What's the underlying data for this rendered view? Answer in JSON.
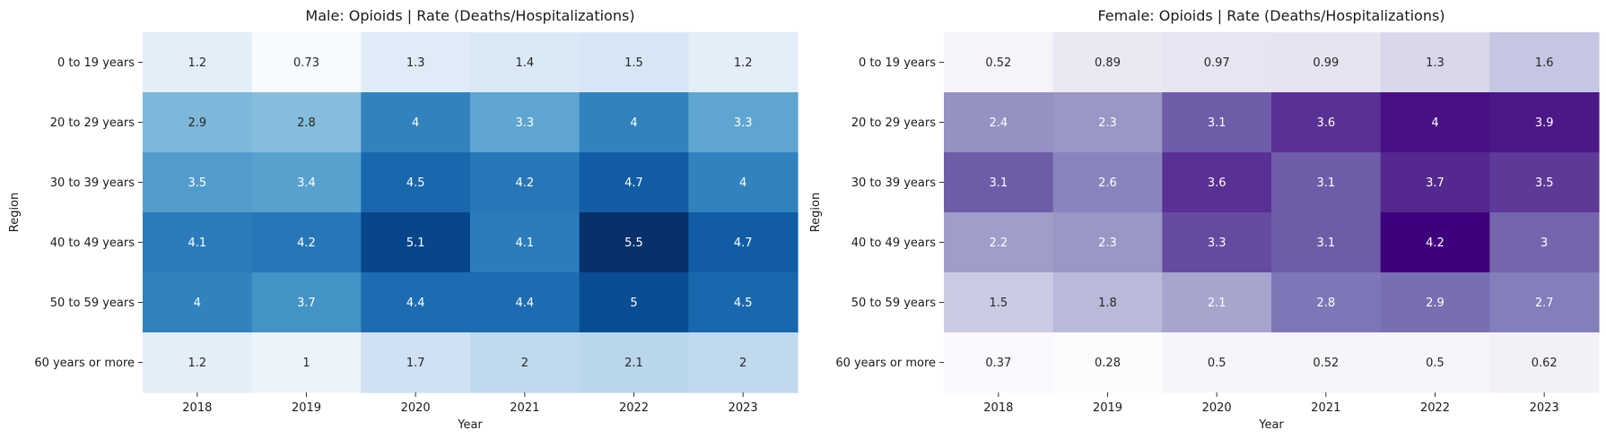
{
  "chart_data": [
    {
      "type": "heatmap",
      "title": "Male: Opioids | Rate (Deaths/Hospitalizations)",
      "xlabel": "Year",
      "ylabel": "Region",
      "x": [
        "2018",
        "2019",
        "2020",
        "2021",
        "2022",
        "2023"
      ],
      "y": [
        "0 to 19 years",
        "20 to 29 years",
        "30 to 39 years",
        "40 to 49 years",
        "50 to 59 years",
        "60 years or more"
      ],
      "values": [
        [
          1.2,
          0.73,
          1.3,
          1.4,
          1.5,
          1.2
        ],
        [
          2.9,
          2.8,
          4,
          3.3,
          4,
          3.3
        ],
        [
          3.5,
          3.4,
          4.5,
          4.2,
          4.7,
          4
        ],
        [
          4.1,
          4.2,
          5.1,
          4.1,
          5.5,
          4.7
        ],
        [
          4,
          3.7,
          4.4,
          4.4,
          5,
          4.5
        ],
        [
          1.2,
          1,
          1.7,
          2,
          2.1,
          2
        ]
      ],
      "colormap": "Blues",
      "colorbar": false
    },
    {
      "type": "heatmap",
      "title": "Female: Opioids | Rate (Deaths/Hospitalizations)",
      "xlabel": "Year",
      "ylabel": "Region",
      "x": [
        "2018",
        "2019",
        "2020",
        "2021",
        "2022",
        "2023"
      ],
      "y": [
        "0 to 19 years",
        "20 to 29 years",
        "30 to 39 years",
        "40 to 49 years",
        "50 to 59 years",
        "60 years or more"
      ],
      "values": [
        [
          0.52,
          0.89,
          0.97,
          0.99,
          1.3,
          1.6
        ],
        [
          2.4,
          2.3,
          3.1,
          3.6,
          4,
          3.9
        ],
        [
          3.1,
          2.6,
          3.6,
          3.1,
          3.7,
          3.5
        ],
        [
          2.2,
          2.3,
          3.3,
          3.1,
          4.2,
          3
        ],
        [
          1.5,
          1.8,
          2.1,
          2.8,
          2.9,
          2.7
        ],
        [
          0.37,
          0.28,
          0.5,
          0.52,
          0.5,
          0.62
        ]
      ],
      "colormap": "Purples",
      "colorbar": false
    }
  ]
}
